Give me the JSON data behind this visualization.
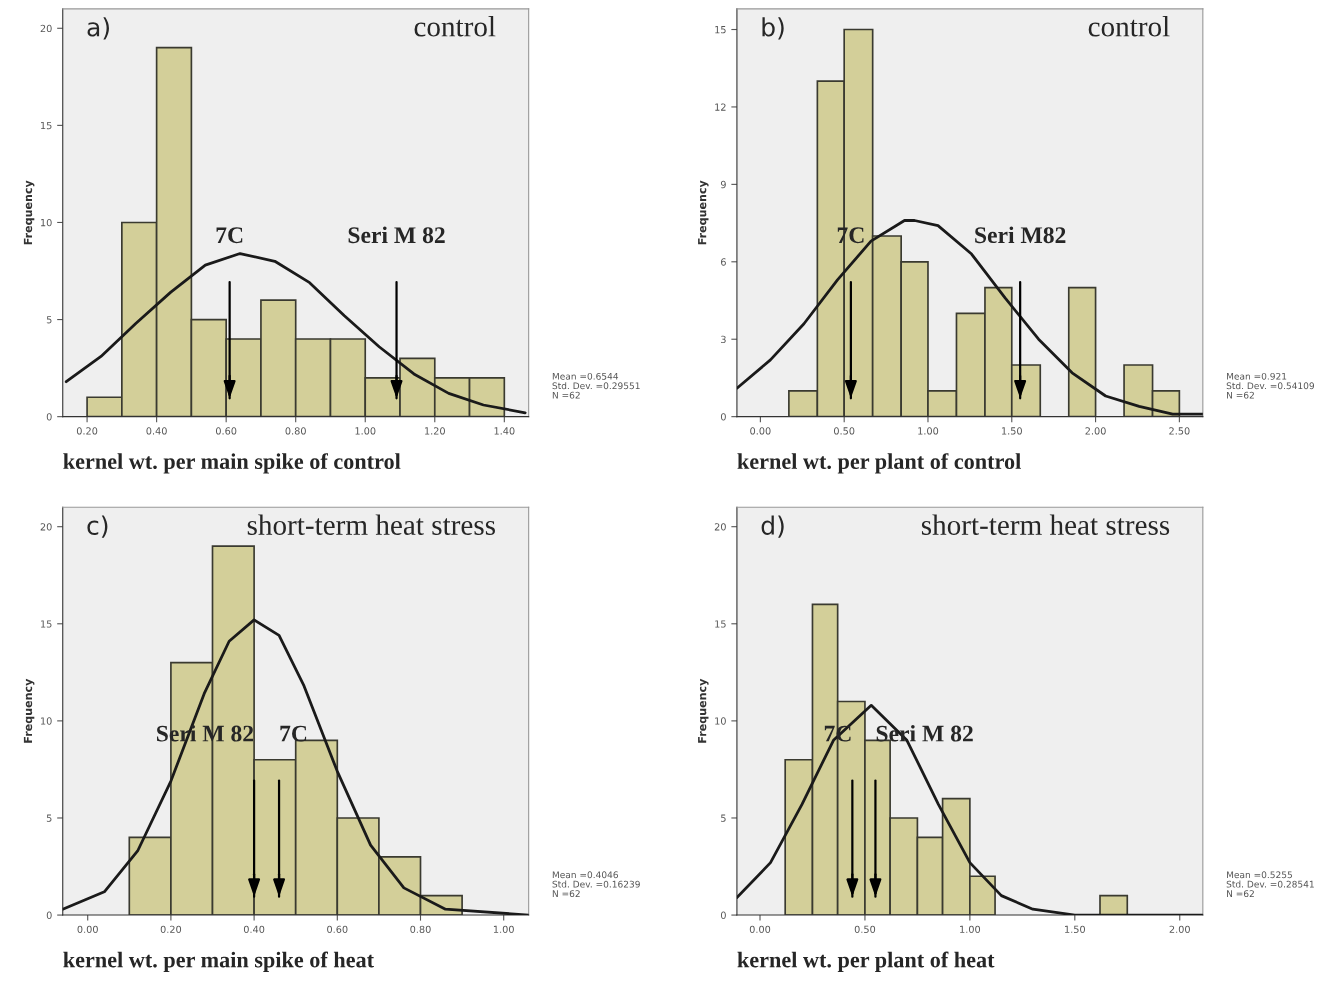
{
  "chart_data": [
    {
      "type": "histogram",
      "title": "a)",
      "subtitle": "control",
      "xlabel": "kernel wt. per main spike of control",
      "ylabel": "Frequency",
      "bins": [
        0.2,
        0.3,
        0.4,
        0.5,
        0.6,
        0.7,
        0.8,
        0.9,
        1.0,
        1.1,
        1.2,
        1.3,
        1.4
      ],
      "series": [
        {
          "type": "histogram",
          "color": "#d3cf99",
          "values": [
            1,
            10,
            19,
            5,
            4,
            6,
            4,
            4,
            2,
            3,
            2,
            2
          ]
        },
        {
          "type": "line",
          "color": "#1a1a1a",
          "x": [
            0.14,
            0.24,
            0.34,
            0.44,
            0.54,
            0.64,
            0.74,
            0.84,
            0.94,
            1.04,
            1.14,
            1.24,
            1.34,
            1.46
          ],
          "values": [
            1.8,
            3.1,
            4.8,
            6.4,
            7.8,
            8.4,
            8.0,
            6.9,
            5.2,
            3.6,
            2.2,
            1.2,
            0.6,
            0.2
          ]
        }
      ],
      "xlim": [
        0.13,
        1.47
      ],
      "xticks": [
        {
          "value": 0.2,
          "label": "0.20"
        },
        {
          "value": 0.4,
          "label": "0.40"
        },
        {
          "value": 0.6,
          "label": "0.60"
        },
        {
          "value": 0.8,
          "label": "0.80"
        },
        {
          "value": 1.0,
          "label": "1.00"
        },
        {
          "value": 1.2,
          "label": "1.20"
        },
        {
          "value": 1.4,
          "label": "1.40"
        }
      ],
      "ylim": [
        0,
        21
      ],
      "yticks": [
        0,
        5,
        10,
        15,
        20
      ],
      "grid": false,
      "legend": false,
      "ref_lines": [
        {
          "axis": "x",
          "value": 0.61,
          "label": "7C"
        },
        {
          "axis": "x",
          "value": 1.09,
          "label": "Seri M 82"
        }
      ],
      "annotations": [
        "Mean =0.6544\nStd. Dev. =0.29551\nN =62"
      ]
    },
    {
      "type": "histogram",
      "title": "b)",
      "subtitle": "control",
      "xlabel": "kernel wt. per plant of control",
      "ylabel": "Frequency",
      "bins": [
        0.17,
        0.34,
        0.5,
        0.67,
        0.84,
        1.0,
        1.17,
        1.34,
        1.5,
        1.67,
        1.84,
        2.0,
        2.17,
        2.34,
        2.5
      ],
      "series": [
        {
          "type": "histogram",
          "color": "#d3cf99",
          "values": [
            1,
            13,
            15,
            7,
            6,
            1,
            4,
            5,
            2,
            0,
            5,
            0,
            2,
            1
          ]
        },
        {
          "type": "line",
          "color": "#1a1a1a",
          "x": [
            -0.14,
            0.06,
            0.26,
            0.46,
            0.66,
            0.86,
            0.92,
            1.06,
            1.26,
            1.46,
            1.66,
            1.86,
            2.06,
            2.26,
            2.46,
            2.64
          ],
          "values": [
            1.1,
            2.2,
            3.6,
            5.3,
            6.8,
            7.6,
            7.6,
            7.4,
            6.3,
            4.6,
            3.0,
            1.7,
            0.8,
            0.4,
            0.1,
            0.1
          ]
        }
      ],
      "xlim": [
        -0.14,
        2.64
      ],
      "xticks": [
        {
          "value": 0,
          "label": "0.00"
        },
        {
          "value": 0.5,
          "label": "0.50"
        },
        {
          "value": 1.0,
          "label": "1.00"
        },
        {
          "value": 1.5,
          "label": "1.50"
        },
        {
          "value": 2.0,
          "label": "2.00"
        },
        {
          "value": 2.5,
          "label": "2.50"
        }
      ],
      "ylim": [
        0,
        15.8
      ],
      "yticks": [
        0,
        3,
        6,
        9,
        12,
        15
      ],
      "grid": false,
      "legend": false,
      "ref_lines": [
        {
          "axis": "x",
          "value": 0.54,
          "label": "7C"
        },
        {
          "axis": "x",
          "value": 1.55,
          "label": "Seri M82"
        }
      ],
      "annotations": [
        "Mean =0.921\nStd. Dev. =0.54109\nN =62"
      ]
    },
    {
      "type": "histogram",
      "title": "c)",
      "subtitle": "short-term heat stress",
      "xlabel": "kernel wt. per main spike of heat",
      "ylabel": "Frequency",
      "bins": [
        0.1,
        0.2,
        0.3,
        0.4,
        0.5,
        0.6,
        0.7,
        0.8,
        0.9
      ],
      "series": [
        {
          "type": "histogram",
          "color": "#d3cf99",
          "values": [
            4,
            13,
            19,
            8,
            9,
            5,
            3,
            1
          ]
        },
        {
          "type": "line",
          "color": "#1a1a1a",
          "x": [
            -0.06,
            0.04,
            0.12,
            0.2,
            0.28,
            0.34,
            0.4,
            0.46,
            0.52,
            0.6,
            0.68,
            0.76,
            0.86,
            1.06
          ],
          "values": [
            0.3,
            1.2,
            3.3,
            6.9,
            11.4,
            14.1,
            15.2,
            14.4,
            11.8,
            7.4,
            3.6,
            1.4,
            0.3,
            0.0
          ]
        }
      ],
      "xlim": [
        -0.06,
        1.06
      ],
      "xticks": [
        {
          "value": 0,
          "label": "0.00"
        },
        {
          "value": 0.2,
          "label": "0.20"
        },
        {
          "value": 0.4,
          "label": "0.40"
        },
        {
          "value": 0.6,
          "label": "0.60"
        },
        {
          "value": 0.8,
          "label": "0.80"
        },
        {
          "value": 1.0,
          "label": "1.00"
        }
      ],
      "ylim": [
        0,
        21
      ],
      "yticks": [
        0,
        5,
        10,
        15,
        20
      ],
      "grid": false,
      "legend": false,
      "ref_lines": [
        {
          "axis": "x",
          "value": 0.4,
          "label": "Seri M 82"
        },
        {
          "axis": "x",
          "value": 0.46,
          "label": "7C"
        }
      ],
      "annotations": [
        "Mean =0.4046\nStd. Dev. =0.16239\nN =62"
      ]
    },
    {
      "type": "histogram",
      "title": "d)",
      "subtitle": "short-term heat stress",
      "xlabel": "kernel wt. per plant of heat",
      "ylabel": "Frequency",
      "bins": [
        0.12,
        0.25,
        0.37,
        0.5,
        0.62,
        0.75,
        0.87,
        1.0,
        1.12,
        1.62,
        1.75
      ],
      "series": [
        {
          "type": "histogram",
          "color": "#d3cf99",
          "values": [
            8,
            16,
            11,
            9,
            5,
            4,
            6,
            2,
            0,
            1
          ]
        },
        {
          "type": "line",
          "color": "#1a1a1a",
          "x": [
            -0.11,
            0.05,
            0.2,
            0.35,
            0.53,
            0.7,
            0.85,
            1.0,
            1.15,
            1.3,
            1.5,
            2.11
          ],
          "values": [
            0.9,
            2.7,
            5.7,
            9.0,
            10.8,
            9.0,
            5.7,
            2.7,
            1.0,
            0.3,
            0.0,
            0.0
          ]
        }
      ],
      "xlim": [
        -0.11,
        2.11
      ],
      "xticks": [
        {
          "value": 0,
          "label": "0.00"
        },
        {
          "value": 0.5,
          "label": "0.50"
        },
        {
          "value": 1.0,
          "label": "1.00"
        },
        {
          "value": 1.5,
          "label": "1.50"
        },
        {
          "value": 2.0,
          "label": "2.00"
        }
      ],
      "ylim": [
        0,
        21
      ],
      "yticks": [
        0,
        5,
        10,
        15,
        20
      ],
      "grid": false,
      "legend": false,
      "ref_lines": [
        {
          "axis": "x",
          "value": 0.44,
          "label": "7C"
        },
        {
          "axis": "x",
          "value": 0.55,
          "label": "Seri M 82"
        }
      ],
      "annotations": [
        "Mean =0.5255\nStd. Dev. =0.28541\nN =62"
      ]
    }
  ]
}
